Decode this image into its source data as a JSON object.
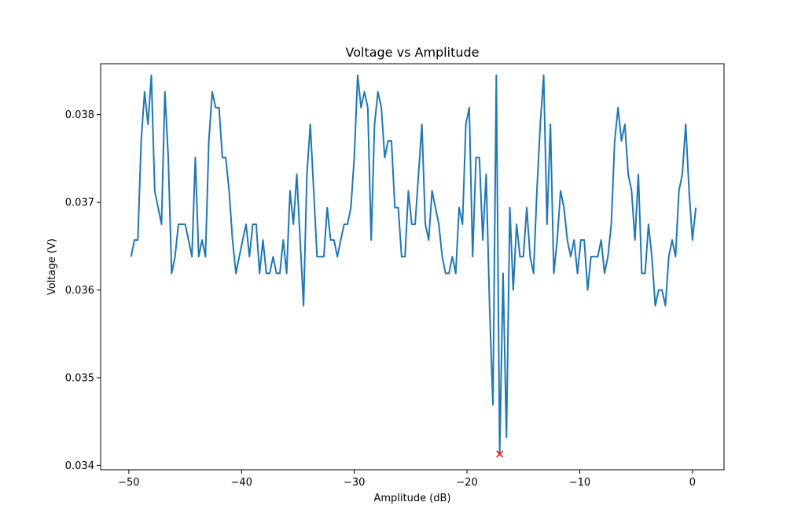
{
  "chart_data": {
    "type": "line",
    "title": "Voltage vs Amplitude",
    "xlabel": "Amplitude (dB)",
    "ylabel": "Voltage (V)",
    "xlim": [
      -52.5,
      2.8
    ],
    "ylim": [
      0.03395,
      0.03858
    ],
    "x_ticks": [
      -50,
      -40,
      -30,
      -20,
      -10,
      0
    ],
    "x_tick_labels": [
      "−50",
      "−40",
      "−30",
      "−20",
      "−10",
      "0"
    ],
    "y_ticks": [
      0.034,
      0.035,
      0.036,
      0.037,
      0.038
    ],
    "y_tick_labels": [
      "0.034",
      "0.035",
      "0.036",
      "0.037",
      "0.038"
    ],
    "grid": false,
    "colors": {
      "series": "#1f77b4",
      "marker": "#ff0000"
    },
    "series": [
      {
        "x": [
          -49.8,
          -49.5,
          -49.2,
          -48.9,
          -48.6,
          -48.3,
          -48.0,
          -47.7,
          -47.4,
          -47.1,
          -46.8,
          -46.5,
          -46.2,
          -45.9,
          -45.6,
          -45.3,
          -45.0,
          -44.7,
          -44.4,
          -44.1,
          -43.8,
          -43.5,
          -43.2,
          -42.9,
          -42.6,
          -42.3,
          -42.0,
          -41.7,
          -41.4,
          -41.1,
          -40.8,
          -40.5,
          -40.2,
          -39.9,
          -39.6,
          -39.3,
          -39.0,
          -38.7,
          -38.4,
          -38.1,
          -37.8,
          -37.5,
          -37.2,
          -36.9,
          -36.6,
          -36.3,
          -36.0,
          -35.7,
          -35.4,
          -35.1,
          -34.8,
          -34.5,
          -34.2,
          -33.9,
          -33.6,
          -33.3,
          -33.0,
          -32.7,
          -32.4,
          -32.1,
          -31.8,
          -31.5,
          -31.2,
          -30.9,
          -30.6,
          -30.3,
          -30.0,
          -29.7,
          -29.4,
          -29.1,
          -28.8,
          -28.5,
          -28.2,
          -27.9,
          -27.6,
          -27.3,
          -27.0,
          -26.7,
          -26.4,
          -26.1,
          -25.8,
          -25.5,
          -25.2,
          -24.9,
          -24.6,
          -24.3,
          -24.0,
          -23.7,
          -23.4,
          -23.1,
          -22.8,
          -22.5,
          -22.2,
          -21.9,
          -21.6,
          -21.3,
          -21.0,
          -20.7,
          -20.4,
          -20.1,
          -19.8,
          -19.5,
          -19.2,
          -18.9,
          -18.6,
          -18.3,
          -18.0,
          -17.7,
          -17.4,
          -17.1,
          -16.8,
          -16.5,
          -16.2,
          -15.9,
          -15.6,
          -15.3,
          -15.0,
          -14.7,
          -14.4,
          -14.1,
          -13.8,
          -13.5,
          -13.2,
          -12.9,
          -12.6,
          -12.3,
          -12.0,
          -11.7,
          -11.4,
          -11.1,
          -10.8,
          -10.5,
          -10.2,
          -9.9,
          -9.6,
          -9.3,
          -9.0,
          -8.7,
          -8.4,
          -8.1,
          -7.8,
          -7.5,
          -7.2,
          -6.9,
          -6.6,
          -6.3,
          -6.0,
          -5.7,
          -5.4,
          -5.1,
          -4.8,
          -4.5,
          -4.2,
          -3.9,
          -3.6,
          -3.3,
          -3.0,
          -2.7,
          -2.4,
          -2.1,
          -1.8,
          -1.5,
          -1.2,
          -0.9,
          -0.6,
          -0.3,
          0.0,
          0.3
        ],
        "values": [
          0.03638,
          0.03657,
          0.03657,
          0.03771,
          0.03826,
          0.03789,
          0.03845,
          0.03713,
          0.03694,
          0.03675,
          0.03826,
          0.03751,
          0.03619,
          0.03638,
          0.03675,
          0.03675,
          0.03675,
          0.03657,
          0.03638,
          0.03751,
          0.03638,
          0.03657,
          0.03638,
          0.0377,
          0.03826,
          0.03808,
          0.03808,
          0.03751,
          0.03751,
          0.03713,
          0.03657,
          0.03619,
          0.03638,
          0.03657,
          0.03675,
          0.03638,
          0.03675,
          0.03675,
          0.03619,
          0.03657,
          0.03619,
          0.03619,
          0.03638,
          0.03619,
          0.03619,
          0.03657,
          0.03619,
          0.03713,
          0.03675,
          0.03732,
          0.03657,
          0.03582,
          0.03732,
          0.03789,
          0.03713,
          0.03638,
          0.03638,
          0.03638,
          0.03694,
          0.03657,
          0.03657,
          0.03638,
          0.03657,
          0.03675,
          0.03675,
          0.03694,
          0.03751,
          0.03845,
          0.03808,
          0.03826,
          0.03808,
          0.03657,
          0.03789,
          0.03826,
          0.03808,
          0.03751,
          0.0377,
          0.0377,
          0.03694,
          0.03694,
          0.03638,
          0.03638,
          0.03713,
          0.03675,
          0.03675,
          0.03732,
          0.03789,
          0.03675,
          0.03657,
          0.03713,
          0.03694,
          0.03675,
          0.03638,
          0.03619,
          0.03619,
          0.03638,
          0.03619,
          0.03694,
          0.03675,
          0.03789,
          0.03808,
          0.03638,
          0.03751,
          0.03751,
          0.03657,
          0.03732,
          0.03582,
          0.03469,
          0.03845,
          0.03413,
          0.03619,
          0.03432,
          0.03694,
          0.036,
          0.03675,
          0.03638,
          0.03638,
          0.03694,
          0.03638,
          0.03619,
          0.03713,
          0.03789,
          0.03845,
          0.03675,
          0.03789,
          0.03619,
          0.03657,
          0.03713,
          0.03694,
          0.03657,
          0.03638,
          0.03657,
          0.03619,
          0.03657,
          0.03657,
          0.036,
          0.03638,
          0.03638,
          0.03638,
          0.03657,
          0.03619,
          0.03638,
          0.03675,
          0.0377,
          0.03808,
          0.0377,
          0.03789,
          0.03732,
          0.03713,
          0.03657,
          0.03732,
          0.03619,
          0.03619,
          0.03675,
          0.03638,
          0.03582,
          0.036,
          0.036,
          0.03582,
          0.03638,
          0.03657,
          0.03638,
          0.03713,
          0.03732,
          0.03789,
          0.03713,
          0.03657,
          0.03694
        ]
      }
    ],
    "marker": {
      "x": -17.1,
      "y": 0.03413,
      "symbol": "x"
    }
  }
}
